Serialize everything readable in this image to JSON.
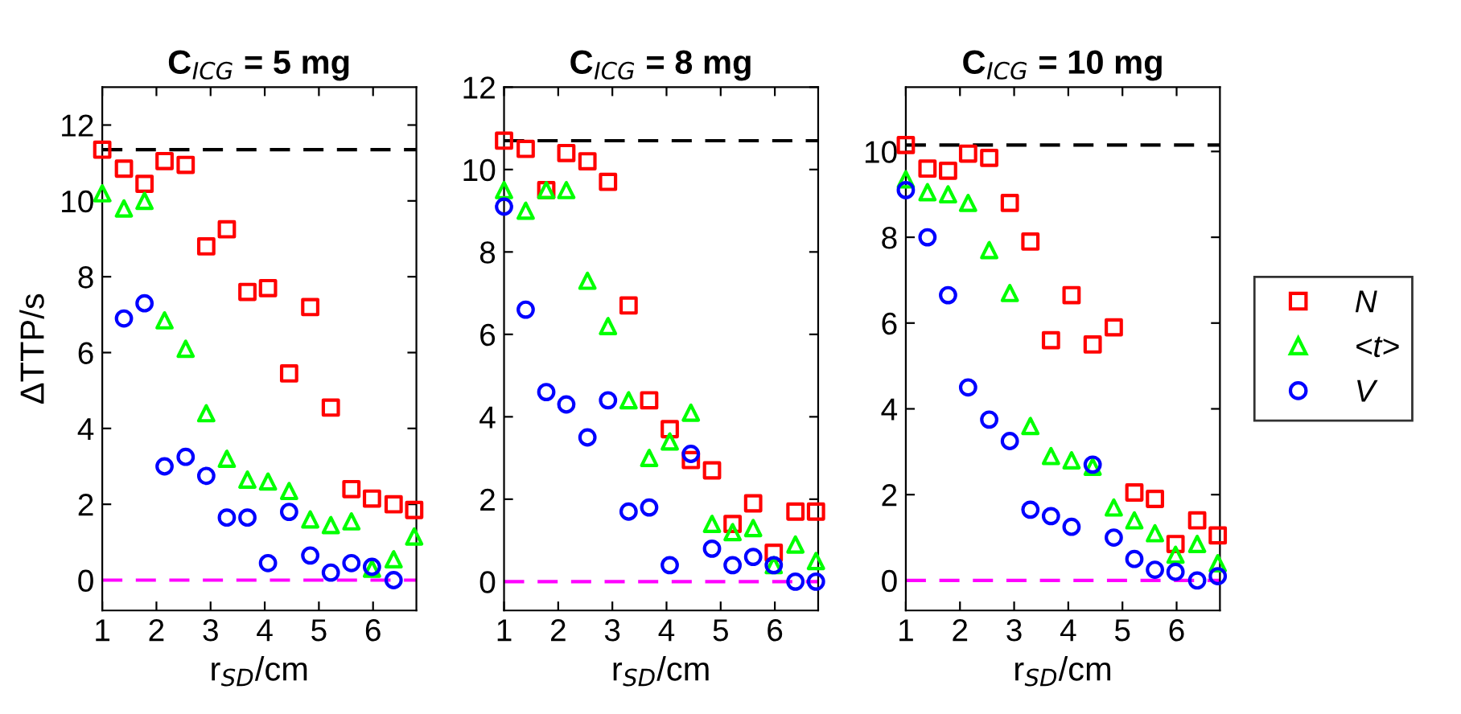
{
  "chart_data": [
    {
      "type": "scatter",
      "title": "C$_{ICG}$ = 5 mg",
      "xlabel": "r$_{SD}$/cm",
      "ylabel": "ΔTTP/s",
      "x": [
        1.0,
        1.4,
        1.78,
        2.15,
        2.54,
        2.92,
        3.3,
        3.68,
        4.06,
        4.45,
        4.84,
        5.22,
        5.6,
        5.98,
        6.38,
        6.76
      ],
      "xlim": [
        1,
        6.8
      ],
      "xticks": [
        1,
        2,
        3,
        4,
        5,
        6
      ],
      "ylim": [
        -0.8,
        13
      ],
      "yticks": [
        0,
        2,
        4,
        6,
        8,
        10,
        12
      ],
      "grid": false,
      "legend": false,
      "series": [
        {
          "color": "#ff0000",
          "marker": "square",
          "values": [
            11.35,
            10.85,
            10.45,
            11.05,
            10.95,
            8.8,
            9.25,
            7.6,
            7.7,
            5.45,
            7.2,
            4.55,
            2.4,
            2.15,
            2.0,
            1.85
          ]
        },
        {
          "color": "#00ff00",
          "marker": "triangle",
          "values": [
            10.2,
            9.8,
            10.0,
            6.85,
            6.1,
            4.4,
            3.2,
            2.65,
            2.6,
            2.35,
            1.6,
            1.45,
            1.55,
            0.3,
            0.55,
            1.15
          ]
        },
        {
          "color": "#0000ff",
          "marker": "circle",
          "values": [
            null,
            6.9,
            7.3,
            3.0,
            3.25,
            2.75,
            1.65,
            1.65,
            0.45,
            1.8,
            0.65,
            0.2,
            0.45,
            0.35,
            0.0,
            null
          ]
        }
      ],
      "ref_lines": [
        {
          "axis": "y",
          "value": 11.35,
          "color": "#000000",
          "line_style": "dashed"
        },
        {
          "axis": "y",
          "value": 0,
          "color": "#ff00ff",
          "line_style": "dashed"
        }
      ]
    },
    {
      "type": "scatter",
      "title": "C$_{ICG}$ = 8 mg",
      "xlabel": "r$_{SD}$/cm",
      "x": [
        1.0,
        1.4,
        1.78,
        2.15,
        2.54,
        2.92,
        3.3,
        3.68,
        4.06,
        4.45,
        4.84,
        5.22,
        5.6,
        5.98,
        6.38,
        6.76
      ],
      "xlim": [
        1,
        6.8
      ],
      "xticks": [
        1,
        2,
        3,
        4,
        5,
        6
      ],
      "ylim": [
        -0.7,
        12
      ],
      "yticks": [
        0,
        2,
        4,
        6,
        8,
        10,
        12
      ],
      "grid": false,
      "legend": false,
      "series": [
        {
          "color": "#ff0000",
          "marker": "square",
          "values": [
            10.7,
            10.5,
            9.5,
            10.4,
            10.2,
            9.7,
            6.7,
            4.4,
            3.7,
            2.95,
            2.7,
            1.4,
            1.9,
            0.7,
            1.7,
            1.7
          ]
        },
        {
          "color": "#00ff00",
          "marker": "triangle",
          "values": [
            9.5,
            9.0,
            9.5,
            9.5,
            7.3,
            6.2,
            4.4,
            3.0,
            3.4,
            4.1,
            1.4,
            1.2,
            1.3,
            0.4,
            0.9,
            0.5
          ]
        },
        {
          "color": "#0000ff",
          "marker": "circle",
          "values": [
            9.1,
            6.6,
            4.6,
            4.3,
            3.5,
            4.4,
            1.7,
            1.8,
            0.4,
            3.1,
            0.8,
            0.4,
            0.6,
            0.4,
            0.0,
            0.0
          ]
        }
      ],
      "ref_lines": [
        {
          "axis": "y",
          "value": 10.7,
          "color": "#000000",
          "line_style": "dashed"
        },
        {
          "axis": "y",
          "value": 0,
          "color": "#ff00ff",
          "line_style": "dashed"
        }
      ]
    },
    {
      "type": "scatter",
      "title": "C$_{ICG}$ = 10 mg",
      "xlabel": "r$_{SD}$/cm",
      "x": [
        1.0,
        1.4,
        1.78,
        2.15,
        2.54,
        2.92,
        3.3,
        3.68,
        4.06,
        4.45,
        4.84,
        5.22,
        5.6,
        5.98,
        6.38,
        6.76
      ],
      "xlim": [
        1,
        6.8
      ],
      "xticks": [
        1,
        2,
        3,
        4,
        5,
        6
      ],
      "ylim": [
        -0.7,
        11.5
      ],
      "yticks": [
        0,
        2,
        4,
        6,
        8,
        10
      ],
      "grid": false,
      "legend": "right",
      "series": [
        {
          "name": "N",
          "color": "#ff0000",
          "marker": "square",
          "values": [
            10.15,
            9.6,
            9.55,
            9.95,
            9.85,
            8.8,
            7.9,
            5.6,
            6.65,
            5.5,
            5.9,
            2.05,
            1.9,
            0.85,
            1.4,
            1.05
          ]
        },
        {
          "name": "<t>",
          "color": "#00ff00",
          "marker": "triangle",
          "values": [
            9.35,
            9.05,
            9.0,
            8.8,
            7.7,
            6.7,
            3.6,
            2.9,
            2.8,
            2.65,
            1.7,
            1.4,
            1.1,
            0.6,
            0.85,
            0.4
          ]
        },
        {
          "name": "V",
          "color": "#0000ff",
          "marker": "circle",
          "values": [
            9.1,
            8.0,
            6.65,
            4.5,
            3.75,
            3.25,
            1.65,
            1.5,
            1.25,
            2.7,
            1.0,
            0.5,
            0.25,
            0.2,
            0.0,
            0.1
          ]
        }
      ],
      "ref_lines": [
        {
          "axis": "y",
          "value": 10.15,
          "color": "#000000",
          "line_style": "dashed"
        },
        {
          "axis": "y",
          "value": 0,
          "color": "#ff00ff",
          "line_style": "dashed"
        }
      ]
    }
  ]
}
